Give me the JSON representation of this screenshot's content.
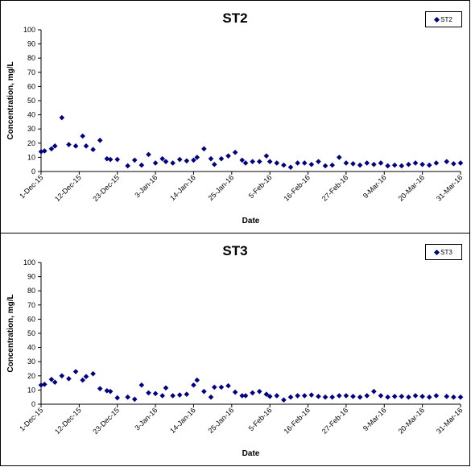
{
  "chart_data": [
    {
      "type": "scatter",
      "title": "ST2",
      "xlabel": "Date",
      "ylabel": "Concentration, mg/L",
      "ylim": [
        0,
        100
      ],
      "yticks": [
        0,
        10,
        20,
        30,
        40,
        50,
        60,
        70,
        80,
        90,
        100
      ],
      "xlim": [
        "2015-12-01",
        "2016-03-31"
      ],
      "xticks": [
        "1-Dec-15",
        "12-Dec-15",
        "23-Dec-15",
        "3-Jan-16",
        "14-Jan-16",
        "25-Jan-16",
        "5-Feb-16",
        "16-Feb-16",
        "27-Feb-16",
        "9-Mar-16",
        "20-Mar-16",
        "31-Mar-16"
      ],
      "grid": false,
      "legend_position": "top-right",
      "marker_color": "#000080",
      "series": [
        {
          "name": "ST2",
          "x": [
            "2015-12-01",
            "2015-12-02",
            "2015-12-04",
            "2015-12-05",
            "2015-12-07",
            "2015-12-09",
            "2015-12-11",
            "2015-12-13",
            "2015-12-14",
            "2015-12-16",
            "2015-12-18",
            "2015-12-20",
            "2015-12-21",
            "2015-12-23",
            "2015-12-26",
            "2015-12-28",
            "2015-12-30",
            "2016-01-01",
            "2016-01-03",
            "2016-01-05",
            "2016-01-06",
            "2016-01-08",
            "2016-01-10",
            "2016-01-12",
            "2016-01-14",
            "2016-01-15",
            "2016-01-17",
            "2016-01-19",
            "2016-01-20",
            "2016-01-22",
            "2016-01-24",
            "2016-01-26",
            "2016-01-28",
            "2016-01-29",
            "2016-01-31",
            "2016-02-02",
            "2016-02-04",
            "2016-02-05",
            "2016-02-07",
            "2016-02-09",
            "2016-02-11",
            "2016-02-13",
            "2016-02-15",
            "2016-02-17",
            "2016-02-19",
            "2016-02-21",
            "2016-02-23",
            "2016-02-25",
            "2016-02-27",
            "2016-02-29",
            "2016-03-02",
            "2016-03-04",
            "2016-03-06",
            "2016-03-08",
            "2016-03-10",
            "2016-03-12",
            "2016-03-14",
            "2016-03-16",
            "2016-03-18",
            "2016-03-20",
            "2016-03-22",
            "2016-03-24",
            "2016-03-27",
            "2016-03-29",
            "2016-03-31"
          ],
          "y": [
            14,
            14.5,
            16,
            18,
            38,
            19,
            18,
            25,
            18,
            15.5,
            22,
            9,
            8.5,
            8.5,
            4,
            8,
            4.5,
            12,
            6,
            9,
            7,
            6,
            8.5,
            7.5,
            8,
            10,
            16,
            9,
            5,
            9,
            11,
            13.5,
            8,
            6,
            7,
            7,
            11,
            7,
            6,
            4.5,
            3,
            6,
            6,
            5,
            7,
            4,
            4.5,
            10,
            6,
            5.5,
            4.5,
            6,
            5,
            6,
            4,
            4.5,
            4,
            5,
            6,
            5,
            4.5,
            6,
            7,
            5.5,
            6
          ]
        }
      ]
    },
    {
      "type": "scatter",
      "title": "ST3",
      "xlabel": "Date",
      "ylabel": "Concentration, mg/L",
      "ylim": [
        0,
        100
      ],
      "yticks": [
        0,
        10,
        20,
        30,
        40,
        50,
        60,
        70,
        80,
        90,
        100
      ],
      "xlim": [
        "2015-12-01",
        "2016-03-31"
      ],
      "xticks": [
        "1-Dec-15",
        "12-Dec-15",
        "23-Dec-15",
        "3-Jan-16",
        "14-Jan-16",
        "25-Jan-16",
        "5-Feb-16",
        "16-Feb-16",
        "27-Feb-16",
        "9-Mar-16",
        "20-Mar-16",
        "31-Mar-16"
      ],
      "grid": false,
      "legend_position": "top-right",
      "marker_color": "#000080",
      "series": [
        {
          "name": "ST3",
          "x": [
            "2015-12-01",
            "2015-12-02",
            "2015-12-04",
            "2015-12-05",
            "2015-12-07",
            "2015-12-09",
            "2015-12-11",
            "2015-12-13",
            "2015-12-14",
            "2015-12-16",
            "2015-12-18",
            "2015-12-20",
            "2015-12-21",
            "2015-12-23",
            "2015-12-26",
            "2015-12-28",
            "2015-12-30",
            "2016-01-01",
            "2016-01-03",
            "2016-01-05",
            "2016-01-06",
            "2016-01-08",
            "2016-01-10",
            "2016-01-12",
            "2016-01-14",
            "2016-01-15",
            "2016-01-17",
            "2016-01-19",
            "2016-01-20",
            "2016-01-22",
            "2016-01-24",
            "2016-01-26",
            "2016-01-28",
            "2016-01-29",
            "2016-01-31",
            "2016-02-02",
            "2016-02-04",
            "2016-02-05",
            "2016-02-07",
            "2016-02-09",
            "2016-02-11",
            "2016-02-13",
            "2016-02-15",
            "2016-02-17",
            "2016-02-19",
            "2016-02-21",
            "2016-02-23",
            "2016-02-25",
            "2016-02-27",
            "2016-02-29",
            "2016-03-02",
            "2016-03-04",
            "2016-03-06",
            "2016-03-08",
            "2016-03-10",
            "2016-03-12",
            "2016-03-14",
            "2016-03-16",
            "2016-03-18",
            "2016-03-20",
            "2016-03-22",
            "2016-03-24",
            "2016-03-27",
            "2016-03-29",
            "2016-03-31"
          ],
          "y": [
            13.5,
            14,
            17.5,
            15.5,
            20,
            18,
            23,
            17,
            19.5,
            21.5,
            11,
            9.5,
            9,
            4.5,
            5,
            3.5,
            13.5,
            8,
            7.5,
            6,
            11.5,
            6,
            6.5,
            7,
            13.5,
            17,
            9,
            5,
            12,
            12,
            13,
            8.5,
            6,
            6,
            8,
            9,
            7,
            5.5,
            6,
            3,
            5,
            6,
            6,
            6.5,
            5.5,
            5,
            5,
            6,
            6,
            5.5,
            5,
            6,
            9,
            6,
            5,
            5.5,
            5.5,
            5,
            6,
            5.5,
            5,
            6,
            5.5,
            5,
            5
          ]
        }
      ]
    }
  ]
}
